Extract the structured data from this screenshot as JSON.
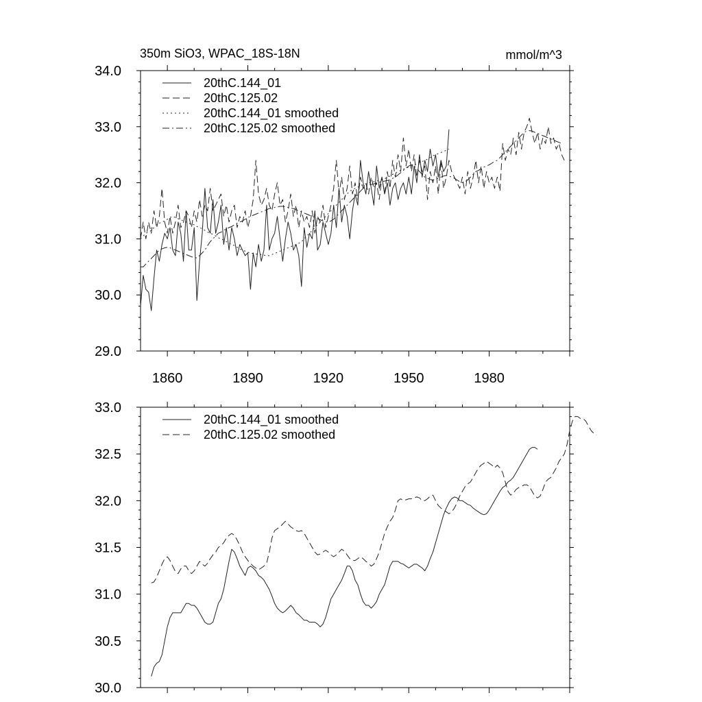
{
  "chart_data": [
    {
      "type": "line",
      "title_left": "350m SiO3, WPAC_18S-18N",
      "title_right": "mmol/m^3",
      "xlabel": "",
      "ylabel": "",
      "xlim": [
        1850,
        2010
      ],
      "ylim": [
        29.0,
        34.0
      ],
      "x_ticks": [
        1860,
        1890,
        1920,
        1950,
        1980
      ],
      "y_ticks": [
        "29.0",
        "30.0",
        "31.0",
        "32.0",
        "33.0",
        "34.0"
      ],
      "legend_position": "top-left",
      "series": [
        {
          "name": "20thC.144_01",
          "style": "solid",
          "x_start": 1850,
          "values": [
            29.8,
            30.35,
            30.1,
            30.05,
            29.72,
            30.3,
            30.8,
            30.6,
            30.9,
            31.1,
            31.0,
            31.2,
            30.8,
            30.7,
            31.3,
            31.1,
            30.6,
            31.5,
            30.8,
            30.8,
            31.2,
            29.9,
            30.6,
            31.1,
            31.9,
            31.2,
            31.1,
            31.7,
            31.1,
            31.3,
            31.6,
            30.9,
            31.2,
            30.8,
            31.2,
            31.0,
            30.7,
            30.9,
            30.8,
            30.7,
            30.75,
            30.1,
            30.75,
            30.5,
            30.9,
            30.6,
            30.8,
            31.6,
            30.8,
            31.0,
            31.1,
            31.4,
            31.0,
            30.6,
            31.0,
            31.3,
            31.1,
            30.8,
            30.9,
            30.7,
            30.15,
            31.2,
            30.85,
            31.1,
            31.0,
            31.5,
            30.8,
            30.9,
            31.3,
            31.1,
            30.9,
            31.1,
            31.6,
            31.2,
            31.9,
            31.3,
            31.6,
            31.4,
            31.0,
            31.5,
            31.8,
            31.6,
            32.4,
            32.0,
            31.8,
            32.2,
            31.9,
            31.6,
            32.3,
            31.9,
            32.1,
            31.8,
            32.0,
            31.6,
            31.9,
            32.0,
            31.7,
            31.9,
            32.0,
            31.8,
            32.1,
            31.8,
            32.3,
            32.0,
            32.5,
            32.1,
            32.4,
            32.2,
            32.6,
            32.3,
            32.5,
            32.1,
            32.4,
            32.2,
            32.3,
            32.95
          ]
        },
        {
          "name": "20thC.125.02",
          "style": "dashed",
          "x_start": 1850,
          "values": [
            31.0,
            31.3,
            31.0,
            31.3,
            31.1,
            31.5,
            31.2,
            31.4,
            31.9,
            31.3,
            31.1,
            31.4,
            31.1,
            31.3,
            31.6,
            31.2,
            31.3,
            31.5,
            31.4,
            31.2,
            31.5,
            31.3,
            31.7,
            31.4,
            31.6,
            31.5,
            31.9,
            31.5,
            31.6,
            31.7,
            31.8,
            31.4,
            31.6,
            31.3,
            31.5,
            31.6,
            31.2,
            31.4,
            31.3,
            31.5,
            31.2,
            31.4,
            31.7,
            32.4,
            31.8,
            31.6,
            31.7,
            31.9,
            31.6,
            31.5,
            31.8,
            32.0,
            31.6,
            31.7,
            31.3,
            31.5,
            31.8,
            31.4,
            31.6,
            31.2,
            31.5,
            31.3,
            31.4,
            31.2,
            31.5,
            31.1,
            31.4,
            31.3,
            31.6,
            31.2,
            31.4,
            31.6,
            31.9,
            32.4,
            31.8,
            32.1,
            31.7,
            31.9,
            32.3,
            31.8,
            32.0,
            31.7,
            32.1,
            31.9,
            32.0,
            31.8,
            32.1,
            31.9,
            32.0,
            31.7,
            32.1,
            31.8,
            32.2,
            31.9,
            32.4,
            32.1,
            32.5,
            32.2,
            32.8,
            32.3,
            32.6,
            32.2,
            32.5,
            32.1,
            32.4,
            32.2,
            32.3,
            31.7,
            32.2,
            32.0,
            32.3,
            31.8,
            32.4,
            31.9,
            32.1,
            32.4,
            32.2,
            32.1,
            32.0,
            31.9,
            32.1,
            31.8,
            32.2,
            31.9,
            32.1,
            32.4,
            32.0,
            32.3,
            31.9,
            32.2,
            32.0,
            32.1,
            31.9,
            32.1,
            31.85,
            32.7,
            32.4,
            32.6,
            32.5,
            32.8,
            32.5,
            32.9,
            32.6,
            32.9,
            33.0,
            33.15,
            32.9,
            32.7,
            32.9,
            32.6,
            32.8,
            32.7,
            33.0,
            32.7,
            32.8,
            32.6,
            32.7,
            32.5,
            32.4
          ]
        },
        {
          "name": "20thC.144_01 smoothed",
          "style": "dotted",
          "x_start": 1850,
          "values": [
            31.0,
            31.05,
            31.1,
            31.12,
            31.15,
            31.2,
            31.25,
            31.28,
            31.3,
            31.32,
            31.35,
            31.38,
            31.4,
            31.38,
            31.36,
            31.34,
            31.32,
            31.3,
            31.28,
            31.26,
            31.25,
            31.22,
            31.2,
            31.18,
            31.15,
            31.12,
            31.1,
            31.08,
            31.05,
            31.02,
            31.0,
            30.98,
            30.95,
            30.92,
            30.9,
            30.88,
            30.85,
            30.82,
            30.8,
            30.78,
            30.76,
            30.75,
            30.74,
            30.73,
            30.72,
            30.72,
            30.71,
            30.7,
            30.7,
            30.72,
            30.74,
            30.76,
            30.78,
            30.8,
            30.82,
            30.84,
            30.86,
            30.88,
            30.9,
            30.92,
            30.95,
            31.0,
            31.05,
            31.1,
            31.15,
            31.2,
            31.25,
            31.3,
            31.35,
            31.4,
            31.45,
            31.5,
            31.55,
            31.6,
            31.65,
            31.7,
            31.75,
            31.8,
            31.85,
            31.88,
            31.9,
            31.92,
            31.95,
            31.97,
            31.98,
            32.0,
            32.01,
            32.02,
            32.03,
            32.04,
            32.05,
            32.07,
            32.1,
            32.12,
            32.15,
            32.17,
            32.2,
            32.22,
            32.24,
            32.26,
            32.28,
            32.3,
            32.32,
            32.34,
            32.36,
            32.38,
            32.4,
            32.42,
            32.45,
            32.48,
            32.5,
            32.52,
            32.54,
            32.56,
            32.58,
            32.6
          ]
        },
        {
          "name": "20thC.125.02 smoothed",
          "style": "dashdot",
          "x_start": 1850,
          "values": [
            30.5,
            30.5,
            30.55,
            30.6,
            30.65,
            30.7,
            30.75,
            30.8,
            30.82,
            30.84,
            30.85,
            30.84,
            30.82,
            30.8,
            30.78,
            30.76,
            30.74,
            30.72,
            30.7,
            30.68,
            30.67,
            30.66,
            30.7,
            30.75,
            30.8,
            30.88,
            30.95,
            31.0,
            31.05,
            31.1,
            31.12,
            31.15,
            31.18,
            31.2,
            31.22,
            31.25,
            31.28,
            31.3,
            31.32,
            31.35,
            31.38,
            31.4,
            31.42,
            31.44,
            31.46,
            31.48,
            31.5,
            31.52,
            31.54,
            31.55,
            31.56,
            31.57,
            31.58,
            31.58,
            31.57,
            31.56,
            31.55,
            31.54,
            31.52,
            31.5,
            31.48,
            31.46,
            31.44,
            31.42,
            31.4,
            31.38,
            31.36,
            31.34,
            31.32,
            31.3,
            31.3,
            31.32,
            31.35,
            31.4,
            31.45,
            31.5,
            31.55,
            31.6,
            31.65,
            31.7,
            31.75,
            31.8,
            31.85,
            31.9,
            31.93,
            31.95,
            31.97,
            31.98,
            32.0,
            32.01,
            32.02,
            32.03,
            32.04,
            32.05,
            32.08,
            32.1,
            32.14,
            32.18,
            32.22,
            32.26,
            32.3,
            32.32,
            32.3,
            32.25,
            32.2,
            32.15,
            32.1,
            32.08,
            32.06,
            32.05,
            32.06,
            32.08,
            32.1,
            32.12,
            32.13,
            32.12,
            32.1,
            32.08,
            32.05,
            32.02,
            32.0,
            32.02,
            32.05,
            32.1,
            32.15,
            32.2,
            32.22,
            32.25,
            32.28,
            32.3,
            32.32,
            32.35,
            32.38,
            32.4,
            32.45,
            32.5,
            32.55,
            32.6,
            32.65,
            32.7,
            32.75,
            32.8,
            32.85,
            32.9,
            32.92,
            32.93,
            32.92,
            32.9,
            32.88,
            32.86,
            32.84,
            32.82,
            32.8,
            32.78,
            32.76,
            32.74,
            32.72,
            32.7
          ]
        }
      ]
    },
    {
      "type": "line",
      "title_left": "",
      "title_right": "",
      "xlabel": "",
      "ylabel": "",
      "xlim": [
        1850,
        2010
      ],
      "ylim": [
        30.0,
        33.0
      ],
      "x_ticks": [],
      "y_ticks": [
        "30.0",
        "30.5",
        "31.0",
        "31.5",
        "32.0",
        "32.5",
        "33.0"
      ],
      "legend_position": "top-left",
      "series": [
        {
          "name": "20thC.144_01 smoothed",
          "style": "solid",
          "x_start": 1854,
          "values": [
            30.12,
            30.22,
            30.26,
            30.28,
            30.35,
            30.5,
            30.65,
            30.75,
            30.8,
            30.8,
            30.8,
            30.8,
            30.85,
            30.9,
            30.9,
            30.88,
            30.88,
            30.85,
            30.8,
            30.75,
            30.7,
            30.68,
            30.68,
            30.7,
            30.8,
            30.9,
            30.95,
            31.05,
            31.2,
            31.35,
            31.48,
            31.45,
            31.38,
            31.3,
            31.25,
            31.2,
            31.28,
            31.3,
            31.28,
            31.25,
            31.2,
            31.18,
            31.15,
            31.1,
            31.05,
            30.98,
            30.9,
            30.85,
            30.82,
            30.8,
            30.82,
            30.85,
            30.88,
            30.85,
            30.8,
            30.78,
            30.75,
            30.72,
            30.72,
            30.7,
            30.7,
            30.7,
            30.68,
            30.65,
            30.68,
            30.75,
            30.85,
            30.95,
            31.0,
            31.05,
            31.1,
            31.15,
            31.22,
            31.3,
            31.3,
            31.25,
            31.15,
            31.1,
            31.0,
            30.92,
            30.88,
            30.88,
            30.85,
            30.88,
            30.92,
            31.0,
            31.05,
            31.1,
            31.2,
            31.3,
            31.35,
            31.35,
            31.35,
            31.33,
            31.32,
            31.3,
            31.28,
            31.3,
            31.32,
            31.32,
            31.3,
            31.28,
            31.25,
            31.3,
            31.38,
            31.45,
            31.55,
            31.65,
            31.75,
            31.85,
            31.92,
            31.98,
            32.02,
            32.04,
            32.03,
            32.0,
            32.0,
            31.98,
            31.96,
            31.95,
            31.92,
            31.9,
            31.88,
            31.86,
            31.85,
            31.86,
            31.9,
            31.95,
            32.0,
            32.05,
            32.1,
            32.14,
            32.16,
            32.2,
            32.22,
            32.25,
            32.3,
            32.35,
            32.4,
            32.45,
            32.5,
            32.55,
            32.57,
            32.57,
            32.55
          ]
        },
        {
          "name": "20thC.125.02 smoothed",
          "style": "dashed",
          "x_start": 1854,
          "values": [
            31.12,
            31.13,
            31.18,
            31.25,
            31.32,
            31.38,
            31.4,
            31.36,
            31.3,
            31.24,
            31.22,
            31.27,
            31.3,
            31.3,
            31.25,
            31.22,
            31.25,
            31.3,
            31.35,
            31.32,
            31.3,
            31.33,
            31.38,
            31.42,
            31.45,
            31.5,
            31.52,
            31.55,
            31.6,
            31.63,
            31.65,
            31.63,
            31.58,
            31.52,
            31.45,
            31.4,
            31.36,
            31.33,
            31.3,
            31.28,
            31.26,
            31.28,
            31.3,
            31.33,
            31.45,
            31.6,
            31.68,
            31.7,
            31.72,
            31.75,
            31.78,
            31.75,
            31.72,
            31.7,
            31.68,
            31.67,
            31.68,
            31.65,
            31.6,
            31.55,
            31.5,
            31.45,
            31.42,
            31.43,
            31.45,
            31.47,
            31.45,
            31.42,
            31.4,
            31.42,
            31.45,
            31.48,
            31.46,
            31.42,
            31.38,
            31.36,
            31.36,
            31.38,
            31.4,
            31.38,
            31.35,
            31.33,
            31.3,
            31.32,
            31.38,
            31.45,
            31.55,
            31.65,
            31.72,
            31.78,
            31.82,
            31.9,
            32.0,
            32.02,
            32.0,
            32.01,
            32.02,
            32.02,
            32.03,
            32.04,
            32.03,
            32.0,
            32.0,
            32.02,
            32.05,
            32.06,
            32.0,
            31.95,
            31.92,
            31.9,
            31.88,
            31.86,
            31.88,
            31.92,
            31.98,
            32.05,
            32.1,
            32.15,
            32.18,
            32.2,
            32.25,
            32.3,
            32.35,
            32.38,
            32.4,
            32.42,
            32.4,
            32.38,
            32.35,
            32.38,
            32.35,
            32.3,
            32.2,
            32.1,
            32.06,
            32.08,
            32.12,
            32.14,
            32.15,
            32.17,
            32.17,
            32.15,
            32.1,
            32.05,
            32.03,
            32.05,
            32.12,
            32.2,
            32.23,
            32.25,
            32.3,
            32.35,
            32.42,
            32.46,
            32.5,
            32.6,
            32.75,
            32.85,
            32.9,
            32.9,
            32.88,
            32.88,
            32.85,
            32.8,
            32.75,
            32.72,
            32.7
          ]
        }
      ]
    }
  ]
}
